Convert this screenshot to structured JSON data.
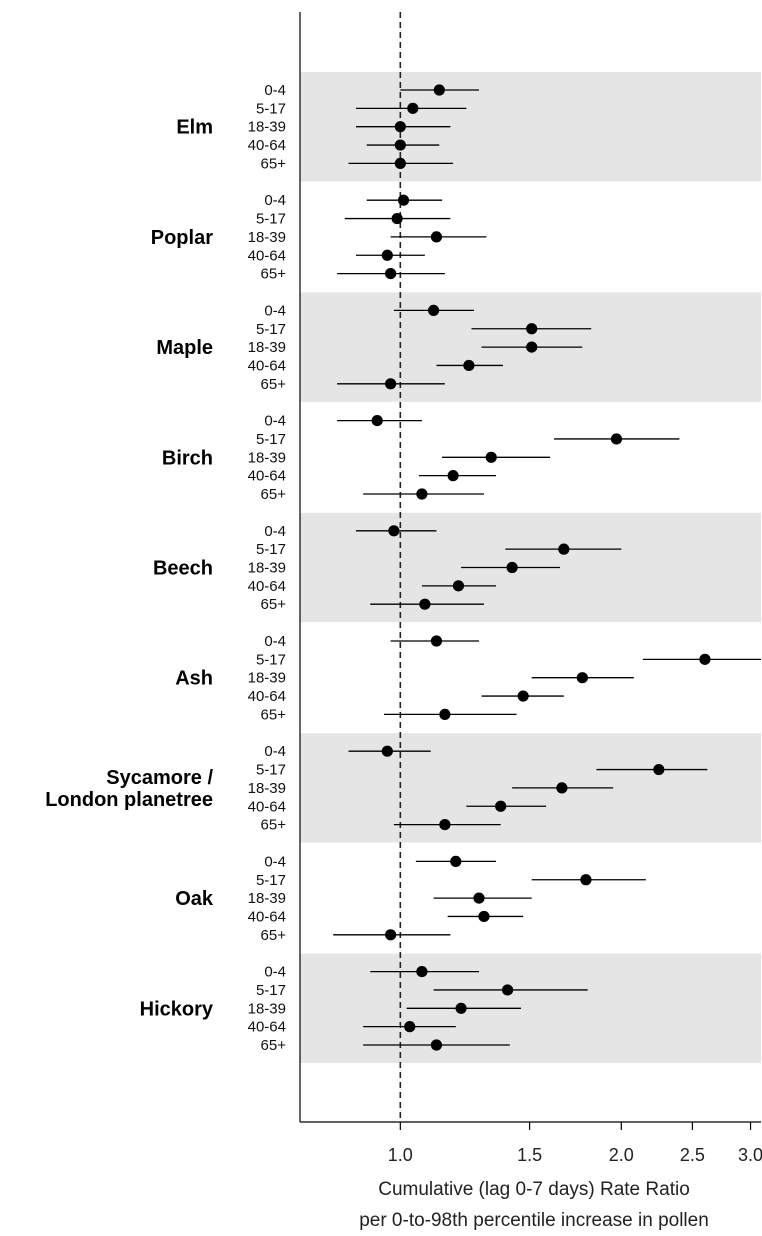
{
  "chart_data": {
    "type": "forest",
    "scale": "log",
    "xlabel_line1": "Cumulative (lag 0-7 days) Rate Ratio",
    "xlabel_line2": "per 0-to-98th percentile increase in pollen",
    "xlim": [
      0.73,
      3.1
    ],
    "xticks": [
      1.0,
      1.5,
      2.0,
      2.5,
      3.0
    ],
    "xtick_labels": [
      "1.0",
      "1.5",
      "2.0",
      "2.5",
      "3.0"
    ],
    "reference_line": 1.0,
    "colors": {
      "band": "#e5e5e5",
      "point": "#000000",
      "line": "#000000"
    },
    "age_groups": [
      "0-4",
      "5-17",
      "18-39",
      "40-64",
      "65+"
    ],
    "groups": [
      {
        "name": "Elm",
        "shaded": true,
        "estimates": [
          {
            "age": "0-4",
            "rr": 1.13,
            "lo": 1.0,
            "hi": 1.28
          },
          {
            "age": "5-17",
            "rr": 1.04,
            "lo": 0.87,
            "hi": 1.23
          },
          {
            "age": "18-39",
            "rr": 1.0,
            "lo": 0.87,
            "hi": 1.17
          },
          {
            "age": "40-64",
            "rr": 1.0,
            "lo": 0.9,
            "hi": 1.13
          },
          {
            "age": "65+",
            "rr": 1.0,
            "lo": 0.85,
            "hi": 1.18
          }
        ]
      },
      {
        "name": "Poplar",
        "shaded": false,
        "estimates": [
          {
            "age": "0-4",
            "rr": 1.01,
            "lo": 0.9,
            "hi": 1.14
          },
          {
            "age": "5-17",
            "rr": 0.99,
            "lo": 0.84,
            "hi": 1.17
          },
          {
            "age": "18-39",
            "rr": 1.12,
            "lo": 0.97,
            "hi": 1.31
          },
          {
            "age": "40-64",
            "rr": 0.96,
            "lo": 0.87,
            "hi": 1.08
          },
          {
            "age": "65+",
            "rr": 0.97,
            "lo": 0.82,
            "hi": 1.15
          }
        ]
      },
      {
        "name": "Maple",
        "shaded": true,
        "estimates": [
          {
            "age": "0-4",
            "rr": 1.11,
            "lo": 0.98,
            "hi": 1.26
          },
          {
            "age": "5-17",
            "rr": 1.51,
            "lo": 1.25,
            "hi": 1.82
          },
          {
            "age": "18-39",
            "rr": 1.51,
            "lo": 1.29,
            "hi": 1.77
          },
          {
            "age": "40-64",
            "rr": 1.24,
            "lo": 1.12,
            "hi": 1.38
          },
          {
            "age": "65+",
            "rr": 0.97,
            "lo": 0.82,
            "hi": 1.15
          }
        ]
      },
      {
        "name": "Birch",
        "shaded": false,
        "estimates": [
          {
            "age": "0-4",
            "rr": 0.93,
            "lo": 0.82,
            "hi": 1.07
          },
          {
            "age": "5-17",
            "rr": 1.97,
            "lo": 1.62,
            "hi": 2.4
          },
          {
            "age": "18-39",
            "rr": 1.33,
            "lo": 1.14,
            "hi": 1.6
          },
          {
            "age": "40-64",
            "rr": 1.18,
            "lo": 1.06,
            "hi": 1.35
          },
          {
            "age": "65+",
            "rr": 1.07,
            "lo": 0.89,
            "hi": 1.3
          }
        ]
      },
      {
        "name": "Beech",
        "shaded": true,
        "estimates": [
          {
            "age": "0-4",
            "rr": 0.98,
            "lo": 0.87,
            "hi": 1.12
          },
          {
            "age": "5-17",
            "rr": 1.67,
            "lo": 1.39,
            "hi": 2.0
          },
          {
            "age": "18-39",
            "rr": 1.42,
            "lo": 1.21,
            "hi": 1.65
          },
          {
            "age": "40-64",
            "rr": 1.2,
            "lo": 1.07,
            "hi": 1.35
          },
          {
            "age": "65+",
            "rr": 1.08,
            "lo": 0.91,
            "hi": 1.3
          }
        ]
      },
      {
        "name": "Ash",
        "shaded": false,
        "estimates": [
          {
            "age": "0-4",
            "rr": 1.12,
            "lo": 0.97,
            "hi": 1.28
          },
          {
            "age": "5-17",
            "rr": 2.6,
            "lo": 2.14,
            "hi": 3.12
          },
          {
            "age": "18-39",
            "rr": 1.77,
            "lo": 1.51,
            "hi": 2.08
          },
          {
            "age": "40-64",
            "rr": 1.47,
            "lo": 1.29,
            "hi": 1.67
          },
          {
            "age": "65+",
            "rr": 1.15,
            "lo": 0.95,
            "hi": 1.44
          }
        ]
      },
      {
        "name": "Sycamore / London planetree",
        "shaded": true,
        "estimates": [
          {
            "age": "0-4",
            "rr": 0.96,
            "lo": 0.85,
            "hi": 1.1
          },
          {
            "age": "5-17",
            "rr": 2.25,
            "lo": 1.85,
            "hi": 2.62
          },
          {
            "age": "18-39",
            "rr": 1.66,
            "lo": 1.42,
            "hi": 1.95
          },
          {
            "age": "40-64",
            "rr": 1.37,
            "lo": 1.23,
            "hi": 1.58
          },
          {
            "age": "65+",
            "rr": 1.15,
            "lo": 0.98,
            "hi": 1.37
          }
        ]
      },
      {
        "name": "Oak",
        "shaded": false,
        "estimates": [
          {
            "age": "0-4",
            "rr": 1.19,
            "lo": 1.05,
            "hi": 1.35
          },
          {
            "age": "5-17",
            "rr": 1.79,
            "lo": 1.51,
            "hi": 2.16
          },
          {
            "age": "18-39",
            "rr": 1.28,
            "lo": 1.11,
            "hi": 1.51
          },
          {
            "age": "40-64",
            "rr": 1.3,
            "lo": 1.16,
            "hi": 1.47
          },
          {
            "age": "65+",
            "rr": 0.97,
            "lo": 0.81,
            "hi": 1.17
          }
        ]
      },
      {
        "name": "Hickory",
        "shaded": true,
        "estimates": [
          {
            "age": "0-4",
            "rr": 1.07,
            "lo": 0.91,
            "hi": 1.28
          },
          {
            "age": "5-17",
            "rr": 1.4,
            "lo": 1.11,
            "hi": 1.8
          },
          {
            "age": "18-39",
            "rr": 1.21,
            "lo": 1.02,
            "hi": 1.46
          },
          {
            "age": "40-64",
            "rr": 1.03,
            "lo": 0.89,
            "hi": 1.19
          },
          {
            "age": "65+",
            "rr": 1.12,
            "lo": 0.89,
            "hi": 1.41
          }
        ]
      }
    ]
  }
}
